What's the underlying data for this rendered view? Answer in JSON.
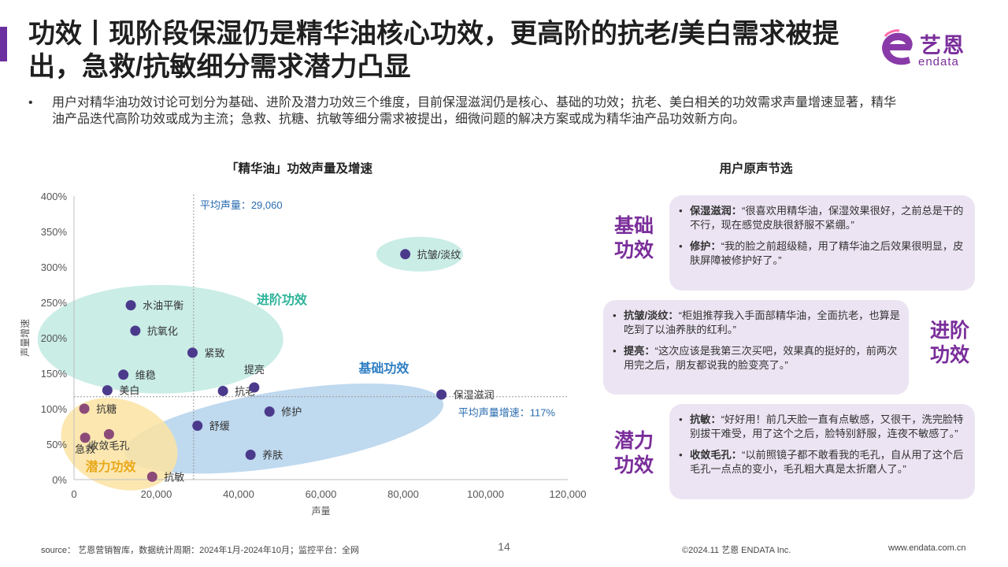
{
  "title": "功效丨现阶段保湿仍是精华油核心功效，更高阶的抗老/美白需求被提出，急救/抗敏细分需求潜力凸显",
  "logo": {
    "cn": "艺恩",
    "en": "endata"
  },
  "summary": "用户对精华油功效讨论可划分为基础、进阶及潜力功效三个维度，目前保湿滋润仍是核心、基础的功效；抗老、美白相关的功效需求声量增速显著，精华油产品迭代高阶功效或成为主流；急救、抗糖、抗敏等细分需求被提出，细微问题的解决方案或成为精华油产品功效新方向。",
  "bullet": "•",
  "chart_title": "「精华油」功效声量及增速",
  "voices_title": "用户原声节选",
  "chart_data": {
    "type": "scatter",
    "xlabel": "声量",
    "ylabel": "声量增速",
    "xlim": [
      0,
      120000
    ],
    "ylim": [
      0,
      400
    ],
    "x_ticks": [
      "0",
      "20,000",
      "40,000",
      "60,000",
      "80,000",
      "100,000",
      "120,000"
    ],
    "x_tick_values": [
      0,
      20000,
      40000,
      60000,
      80000,
      100000,
      120000
    ],
    "y_ticks": [
      "0%",
      "50%",
      "100%",
      "150%",
      "200%",
      "250%",
      "300%",
      "350%",
      "400%"
    ],
    "y_tick_values": [
      0,
      50,
      100,
      150,
      200,
      250,
      300,
      350,
      400
    ],
    "points": [
      {
        "label": "抗皱/淡纹",
        "x": 80500,
        "y": 318,
        "color": "#4b3a8c",
        "label_pos": "right"
      },
      {
        "label": "水油平衡",
        "x": 13800,
        "y": 246,
        "color": "#4b3a8c",
        "label_pos": "right"
      },
      {
        "label": "抗氧化",
        "x": 14900,
        "y": 210,
        "color": "#4b3a8c",
        "label_pos": "right"
      },
      {
        "label": "紧致",
        "x": 28800,
        "y": 179,
        "color": "#4b3a8c",
        "label_pos": "right"
      },
      {
        "label": "维稳",
        "x": 12000,
        "y": 148,
        "color": "#4b3a8c",
        "label_pos": "right"
      },
      {
        "label": "美白",
        "x": 8100,
        "y": 126,
        "color": "#4b3a8c",
        "label_pos": "right"
      },
      {
        "label": "抗老",
        "x": 36200,
        "y": 125,
        "color": "#4b3a8c",
        "label_pos": "right"
      },
      {
        "label": "提亮",
        "x": 43800,
        "y": 130,
        "color": "#4b3a8c",
        "label_pos": "above"
      },
      {
        "label": "保湿滋润",
        "x": 89300,
        "y": 120,
        "color": "#4b3a8c",
        "label_pos": "right"
      },
      {
        "label": "修护",
        "x": 47500,
        "y": 96,
        "color": "#4b3a8c",
        "label_pos": "right"
      },
      {
        "label": "舒缓",
        "x": 30000,
        "y": 76,
        "color": "#4b3a8c",
        "label_pos": "right"
      },
      {
        "label": "养肤",
        "x": 42900,
        "y": 35,
        "color": "#4b3a8c",
        "label_pos": "right"
      },
      {
        "label": "抗糖",
        "x": 2500,
        "y": 100,
        "color": "#8c4a78",
        "label_pos": "right"
      },
      {
        "label": "急救",
        "x": 2700,
        "y": 59,
        "color": "#8c4a78",
        "label_pos": "below"
      },
      {
        "label": "收敛毛孔",
        "x": 8500,
        "y": 64,
        "color": "#8c4a78",
        "label_pos": "below"
      },
      {
        "label": "抗敏",
        "x": 19000,
        "y": 4,
        "color": "#8c4a78",
        "label_pos": "right"
      }
    ],
    "avg_x": {
      "value": 29060,
      "label": "平均声量：29,060"
    },
    "avg_y": {
      "value": 117,
      "label": "平均声量增速：117%"
    },
    "groups": [
      {
        "name": "进阶功效",
        "color": "#b3e5dc",
        "text_color": "#2fb39a"
      },
      {
        "name": "基础功效",
        "color": "#aaccea",
        "text_color": "#2f7fc3"
      },
      {
        "name": "潜力功效",
        "color": "#fbe3a2",
        "text_color": "#e9a81a"
      }
    ]
  },
  "voices": {
    "basic": {
      "label": "基础功效",
      "quotes": [
        {
          "label": "保湿滋润：",
          "text": "“很喜欢用精华油，保湿效果很好，之前总是干的不行，现在感觉皮肤很舒服不紧绷。”"
        },
        {
          "label": "修护：",
          "text": "“我的脸之前超级糙，用了精华油之后效果很明显，皮肤屏障被修护好了。”"
        }
      ]
    },
    "advanced": {
      "label": "进阶功效",
      "quotes": [
        {
          "label": "抗皱/淡纹：",
          "text": "“柜姐推荐我入手面部精华油，全面抗老，也算是吃到了以油养肤的红利。”"
        },
        {
          "label": "提亮：",
          "text": "“这次应该是我第三次买吧，效果真的挺好的，前两次用完之后，朋友都说我的脸变亮了。”"
        }
      ]
    },
    "potential": {
      "label": "潜力功效",
      "quotes": [
        {
          "label": "抗敏：",
          "text": "“好好用！前几天脸一直有点敏感，又很干，洗完脸特别拔干难受，用了这个之后，脸特别舒服，连夜不敏感了。”"
        },
        {
          "label": "收敛毛孔：",
          "text": "“以前照镜子都不敢看我的毛孔，自从用了这个后毛孔一点点的变小，毛孔粗大真是太折磨人了。”"
        }
      ]
    }
  },
  "footer": {
    "source": "source： 艺恩营销智库，数据统计周期：2024年1月-2024年10月；监控平台：全网",
    "page": "14",
    "copyright": "©2024.11  艺恩 ENDATA Inc.",
    "website": "www.endata.com.cn"
  }
}
